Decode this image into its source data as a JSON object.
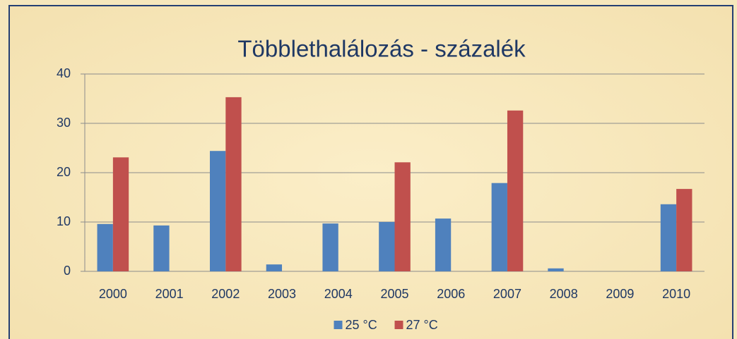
{
  "chart_data": {
    "type": "bar",
    "title": "Többlethalálozás - százalék",
    "categories": [
      "2000",
      "2001",
      "2002",
      "2003",
      "2004",
      "2005",
      "2006",
      "2007",
      "2008",
      "2009",
      "2010"
    ],
    "series": [
      {
        "name": "25 °C",
        "color": "#4f81bd",
        "values": [
          9.6,
          9.3,
          24.4,
          1.4,
          9.7,
          10,
          10.7,
          17.9,
          0.6,
          null,
          13.6
        ]
      },
      {
        "name": "27 °C",
        "color": "#c0504d",
        "values": [
          23.1,
          null,
          35.3,
          null,
          null,
          22.1,
          null,
          32.6,
          null,
          null,
          16.7
        ]
      }
    ],
    "ylim": [
      0,
      40
    ],
    "yticks": [
      0,
      10,
      20,
      30,
      40
    ],
    "grid": true,
    "legend": "bottom"
  }
}
